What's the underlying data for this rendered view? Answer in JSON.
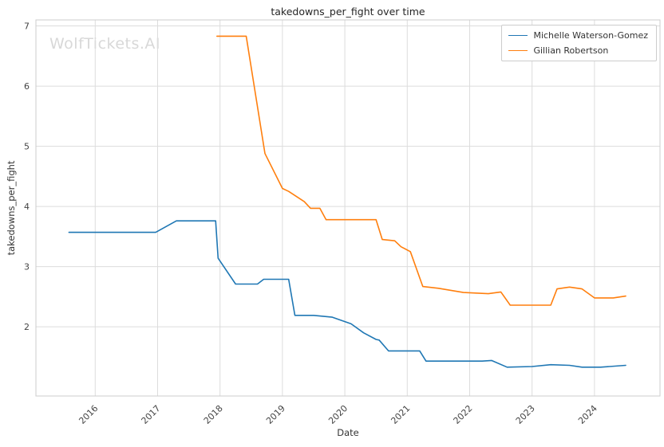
{
  "watermark": "WolfTickets.AI",
  "chart_data": {
    "type": "line",
    "title": "takedowns_per_fight over time",
    "xlabel": "Date",
    "ylabel": "takedowns_per_fight",
    "xlim": [
      2015.05,
      2025.05
    ],
    "ylim": [
      0.85,
      7.1
    ],
    "xticks": [
      2016,
      2017,
      2018,
      2019,
      2020,
      2021,
      2022,
      2023,
      2024
    ],
    "yticks": [
      2,
      3,
      4,
      5,
      6,
      7
    ],
    "grid": true,
    "legend_position": "upper right",
    "series": [
      {
        "name": "Michelle Waterson-Gomez",
        "color": "#1f77b4",
        "x": [
          2015.58,
          2016.97,
          2017.3,
          2017.93,
          2017.97,
          2018.25,
          2018.6,
          2018.7,
          2019.1,
          2019.2,
          2019.5,
          2019.8,
          2020.1,
          2020.3,
          2020.5,
          2020.55,
          2020.7,
          2021.2,
          2021.3,
          2022.2,
          2022.35,
          2022.6,
          2023.0,
          2023.3,
          2023.6,
          2023.8,
          2024.1,
          2024.5
        ],
        "y": [
          3.57,
          3.57,
          3.76,
          3.76,
          3.14,
          2.71,
          2.71,
          2.79,
          2.79,
          2.19,
          2.19,
          2.16,
          2.05,
          1.9,
          1.79,
          1.78,
          1.6,
          1.6,
          1.43,
          1.43,
          1.44,
          1.33,
          1.34,
          1.37,
          1.36,
          1.33,
          1.33,
          1.36
        ]
      },
      {
        "name": "Gillian Robertson",
        "color": "#ff7f0e",
        "x": [
          2017.95,
          2018.42,
          2018.72,
          2019.0,
          2019.1,
          2019.35,
          2019.45,
          2019.6,
          2019.7,
          2020.5,
          2020.6,
          2020.8,
          2020.9,
          2021.05,
          2021.25,
          2021.5,
          2021.9,
          2022.3,
          2022.5,
          2022.65,
          2023.3,
          2023.4,
          2023.6,
          2023.8,
          2024.0,
          2024.3,
          2024.5
        ],
        "y": [
          6.83,
          6.83,
          4.88,
          4.3,
          4.25,
          4.08,
          3.97,
          3.97,
          3.78,
          3.78,
          3.45,
          3.43,
          3.33,
          3.25,
          2.67,
          2.64,
          2.57,
          2.55,
          2.58,
          2.36,
          2.36,
          2.63,
          2.66,
          2.63,
          2.48,
          2.48,
          2.51
        ]
      }
    ]
  }
}
